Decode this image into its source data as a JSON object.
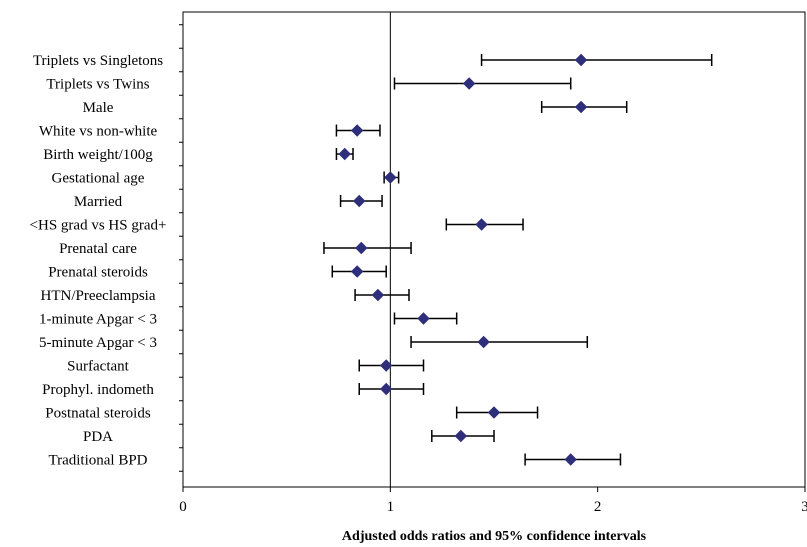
{
  "chart_data": {
    "type": "forest",
    "xlabel": "Adjusted odds ratios and 95% confidence intervals",
    "xlim": [
      0,
      3
    ],
    "xticks": [
      0,
      1,
      2,
      3
    ],
    "xtick_labels": [
      "0",
      "1",
      "2",
      "3"
    ],
    "reference_line": 1,
    "grid": false,
    "marker": "diamond",
    "colors": {
      "marker": "#2E2E7A",
      "whisker": "#000000",
      "axis": "#000000"
    },
    "categories": [
      "Triplets vs Singletons",
      "Triplets vs Twins",
      "Male",
      "White vs non-white",
      "Birth weight/100g",
      "Gestational age",
      "Married",
      "<HS grad vs HS grad+",
      "Prenatal care",
      "Prenatal steroids",
      "HTN/Preeclampsia",
      "1-minute Apgar < 3",
      "5-minute Apgar < 3",
      "Surfactant",
      "Prophyl. indometh",
      "Postnatal steroids",
      "PDA",
      "Traditional BPD"
    ],
    "odds_ratio": [
      1.92,
      1.38,
      1.92,
      0.84,
      0.78,
      1.0,
      0.85,
      1.44,
      0.86,
      0.84,
      0.94,
      1.16,
      1.45,
      0.98,
      0.98,
      1.5,
      1.34,
      1.87
    ],
    "ci_lower": [
      1.44,
      1.02,
      1.73,
      0.74,
      0.74,
      0.97,
      0.76,
      1.27,
      0.68,
      0.72,
      0.83,
      1.02,
      1.1,
      0.85,
      0.85,
      1.32,
      1.2,
      1.65
    ],
    "ci_upper": [
      2.55,
      1.87,
      2.14,
      0.95,
      0.82,
      1.04,
      0.96,
      1.64,
      1.1,
      0.98,
      1.09,
      1.32,
      1.95,
      1.16,
      1.16,
      1.71,
      1.5,
      2.11
    ]
  }
}
